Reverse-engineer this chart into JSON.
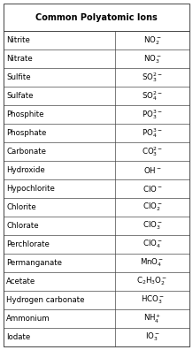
{
  "title": "Common Polyatomic Ions",
  "rows": [
    [
      "Nitrite",
      "NO$_2^-$"
    ],
    [
      "Nitrate",
      "NO$_3^-$"
    ],
    [
      "Sulfite",
      "SO$_3^{2-}$"
    ],
    [
      "Sulfate",
      "SO$_4^{2-}$"
    ],
    [
      "Phosphite",
      "PO$_3^{3-}$"
    ],
    [
      "Phosphate",
      "PO$_4^{3-}$"
    ],
    [
      "Carbonate",
      "CO$_3^{2-}$"
    ],
    [
      "Hydroxide",
      "OH$^-$"
    ],
    [
      "Hypochlorite",
      "ClO$^-$"
    ],
    [
      "Chlorite",
      "ClO$_2^-$"
    ],
    [
      "Chlorate",
      "ClO$_3^-$"
    ],
    [
      "Perchlorate",
      "ClO$_4^-$"
    ],
    [
      "Permanganate",
      "MnO$_4^-$"
    ],
    [
      "Acetate",
      "C$_2$H$_3$O$_2^-$"
    ],
    [
      "Hydrogen carbonate",
      "HCO$_3^-$"
    ],
    [
      "Ammonium",
      "NH$_4^+$"
    ],
    [
      "Iodate",
      "IO$_3^-$"
    ]
  ],
  "col_split": 0.6,
  "border_color": "#444444",
  "title_fontsize": 7.0,
  "cell_fontsize": 6.2,
  "fig_width": 2.18,
  "fig_height": 3.96,
  "dpi": 100
}
